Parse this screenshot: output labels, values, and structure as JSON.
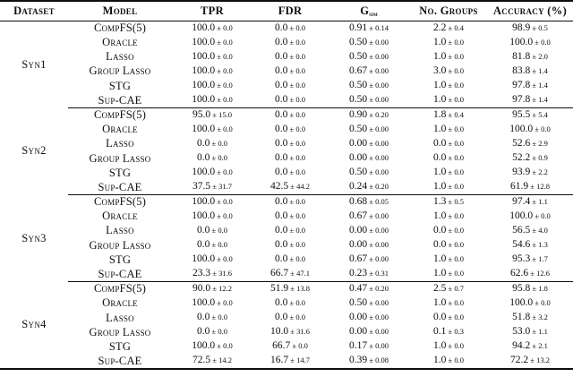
{
  "table": {
    "headers": {
      "dataset": "Dataset",
      "model": "Model",
      "tpr": "TPR",
      "fdr": "FDR",
      "gsim_main": "G",
      "gsim_sub": "sim",
      "no_groups": "No. Groups",
      "accuracy": "Accuracy (%)"
    },
    "plus_minus": "±",
    "groups": [
      {
        "dataset": "Syn1",
        "rows": [
          {
            "model": "CompFS(5)",
            "tpr": [
              "100.0",
              "0.0"
            ],
            "fdr": [
              "0.0",
              "0.0"
            ],
            "gsim": [
              "0.91",
              "0.14"
            ],
            "no_groups": [
              "2.2",
              "0.4"
            ],
            "accuracy": [
              "98.9",
              "0.5"
            ]
          },
          {
            "model": "Oracle",
            "tpr": [
              "100.0",
              "0.0"
            ],
            "fdr": [
              "0.0",
              "0.0"
            ],
            "gsim": [
              "0.50",
              "0.00"
            ],
            "no_groups": [
              "1.0",
              "0.0"
            ],
            "accuracy": [
              "100.0",
              "0.0"
            ]
          },
          {
            "model": "Lasso",
            "tpr": [
              "100.0",
              "0.0"
            ],
            "fdr": [
              "0.0",
              "0.0"
            ],
            "gsim": [
              "0.50",
              "0.00"
            ],
            "no_groups": [
              "1.0",
              "0.0"
            ],
            "accuracy": [
              "81.8",
              "2.0"
            ]
          },
          {
            "model": "Group Lasso",
            "tpr": [
              "100.0",
              "0.0"
            ],
            "fdr": [
              "0.0",
              "0.0"
            ],
            "gsim": [
              "0.67",
              "0.00"
            ],
            "no_groups": [
              "3.0",
              "0.0"
            ],
            "accuracy": [
              "83.8",
              "1.4"
            ]
          },
          {
            "model": "STG",
            "tpr": [
              "100.0",
              "0.0"
            ],
            "fdr": [
              "0.0",
              "0.0"
            ],
            "gsim": [
              "0.50",
              "0.00"
            ],
            "no_groups": [
              "1.0",
              "0.0"
            ],
            "accuracy": [
              "97.8",
              "1.4"
            ]
          },
          {
            "model": "Sup-CAE",
            "tpr": [
              "100.0",
              "0.0"
            ],
            "fdr": [
              "0.0",
              "0.0"
            ],
            "gsim": [
              "0.50",
              "0.00"
            ],
            "no_groups": [
              "1.0",
              "0.0"
            ],
            "accuracy": [
              "97.8",
              "1.4"
            ]
          }
        ]
      },
      {
        "dataset": "Syn2",
        "rows": [
          {
            "model": "CompFS(5)",
            "tpr": [
              "95.0",
              "15.0"
            ],
            "fdr": [
              "0.0",
              "0.0"
            ],
            "gsim": [
              "0.90",
              "0.20"
            ],
            "no_groups": [
              "1.8",
              "0.4"
            ],
            "accuracy": [
              "95.5",
              "5.4"
            ]
          },
          {
            "model": "Oracle",
            "tpr": [
              "100.0",
              "0.0"
            ],
            "fdr": [
              "0.0",
              "0.0"
            ],
            "gsim": [
              "0.50",
              "0.00"
            ],
            "no_groups": [
              "1.0",
              "0.0"
            ],
            "accuracy": [
              "100.0",
              "0.0"
            ]
          },
          {
            "model": "Lasso",
            "tpr": [
              "0.0",
              "0.0"
            ],
            "fdr": [
              "0.0",
              "0.0"
            ],
            "gsim": [
              "0.00",
              "0.00"
            ],
            "no_groups": [
              "0.0",
              "0.0"
            ],
            "accuracy": [
              "52.6",
              "2.9"
            ]
          },
          {
            "model": "Group Lasso",
            "tpr": [
              "0.0",
              "0.0"
            ],
            "fdr": [
              "0.0",
              "0.0"
            ],
            "gsim": [
              "0.00",
              "0.00"
            ],
            "no_groups": [
              "0.0",
              "0.0"
            ],
            "accuracy": [
              "52.2",
              "0.9"
            ]
          },
          {
            "model": "STG",
            "tpr": [
              "100.0",
              "0.0"
            ],
            "fdr": [
              "0.0",
              "0.0"
            ],
            "gsim": [
              "0.50",
              "0.00"
            ],
            "no_groups": [
              "1.0",
              "0.0"
            ],
            "accuracy": [
              "93.9",
              "2.2"
            ]
          },
          {
            "model": "Sup-CAE",
            "tpr": [
              "37.5",
              "31.7"
            ],
            "fdr": [
              "42.5",
              "44.2"
            ],
            "gsim": [
              "0.24",
              "0.20"
            ],
            "no_groups": [
              "1.0",
              "0.0"
            ],
            "accuracy": [
              "61.9",
              "12.8"
            ]
          }
        ]
      },
      {
        "dataset": "Syn3",
        "rows": [
          {
            "model": "CompFS(5)",
            "tpr": [
              "100.0",
              "0.0"
            ],
            "fdr": [
              "0.0",
              "0.0"
            ],
            "gsim": [
              "0.68",
              "0.05"
            ],
            "no_groups": [
              "1.3",
              "0.5"
            ],
            "accuracy": [
              "97.4",
              "1.1"
            ]
          },
          {
            "model": "Oracle",
            "tpr": [
              "100.0",
              "0.0"
            ],
            "fdr": [
              "0.0",
              "0.0"
            ],
            "gsim": [
              "0.67",
              "0.00"
            ],
            "no_groups": [
              "1.0",
              "0.0"
            ],
            "accuracy": [
              "100.0",
              "0.0"
            ]
          },
          {
            "model": "Lasso",
            "tpr": [
              "0.0",
              "0.0"
            ],
            "fdr": [
              "0.0",
              "0.0"
            ],
            "gsim": [
              "0.00",
              "0.00"
            ],
            "no_groups": [
              "0.0",
              "0.0"
            ],
            "accuracy": [
              "56.5",
              "4.0"
            ]
          },
          {
            "model": "Group Lasso",
            "tpr": [
              "0.0",
              "0.0"
            ],
            "fdr": [
              "0.0",
              "0.0"
            ],
            "gsim": [
              "0.00",
              "0.00"
            ],
            "no_groups": [
              "0.0",
              "0.0"
            ],
            "accuracy": [
              "54.6",
              "1.3"
            ]
          },
          {
            "model": "STG",
            "tpr": [
              "100.0",
              "0.0"
            ],
            "fdr": [
              "0.0",
              "0.0"
            ],
            "gsim": [
              "0.67",
              "0.00"
            ],
            "no_groups": [
              "1.0",
              "0.0"
            ],
            "accuracy": [
              "95.3",
              "1.7"
            ]
          },
          {
            "model": "Sup-CAE",
            "tpr": [
              "23.3",
              "31.6"
            ],
            "fdr": [
              "66.7",
              "47.1"
            ],
            "gsim": [
              "0.23",
              "0.31"
            ],
            "no_groups": [
              "1.0",
              "0.0"
            ],
            "accuracy": [
              "62.6",
              "12.6"
            ]
          }
        ]
      },
      {
        "dataset": "Syn4",
        "rows": [
          {
            "model": "CompFS(5)",
            "tpr": [
              "90.0",
              "12.2"
            ],
            "fdr": [
              "51.9",
              "13.8"
            ],
            "gsim": [
              "0.47",
              "0.20"
            ],
            "no_groups": [
              "2.5",
              "0.7"
            ],
            "accuracy": [
              "95.8",
              "1.8"
            ]
          },
          {
            "model": "Oracle",
            "tpr": [
              "100.0",
              "0.0"
            ],
            "fdr": [
              "0.0",
              "0.0"
            ],
            "gsim": [
              "0.50",
              "0.00"
            ],
            "no_groups": [
              "1.0",
              "0.0"
            ],
            "accuracy": [
              "100.0",
              "0.0"
            ]
          },
          {
            "model": "Lasso",
            "tpr": [
              "0.0",
              "0.0"
            ],
            "fdr": [
              "0.0",
              "0.0"
            ],
            "gsim": [
              "0.00",
              "0.00"
            ],
            "no_groups": [
              "0.0",
              "0.0"
            ],
            "accuracy": [
              "51.8",
              "3.2"
            ]
          },
          {
            "model": "Group Lasso",
            "tpr": [
              "0.0",
              "0.0"
            ],
            "fdr": [
              "10.0",
              "31.6"
            ],
            "gsim": [
              "0.00",
              "0.00"
            ],
            "no_groups": [
              "0.1",
              "0.3"
            ],
            "accuracy": [
              "53.0",
              "1.1"
            ]
          },
          {
            "model": "STG",
            "tpr": [
              "100.0",
              "0.0"
            ],
            "fdr": [
              "66.7",
              "0.0"
            ],
            "gsim": [
              "0.17",
              "0.00"
            ],
            "no_groups": [
              "1.0",
              "0.0"
            ],
            "accuracy": [
              "94.2",
              "2.1"
            ]
          },
          {
            "model": "Sup-CAE",
            "tpr": [
              "72.5",
              "14.2"
            ],
            "fdr": [
              "16.7",
              "14.7"
            ],
            "gsim": [
              "0.39",
              "0.08"
            ],
            "no_groups": [
              "1.0",
              "0.0"
            ],
            "accuracy": [
              "72.2",
              "13.2"
            ]
          }
        ]
      }
    ]
  }
}
